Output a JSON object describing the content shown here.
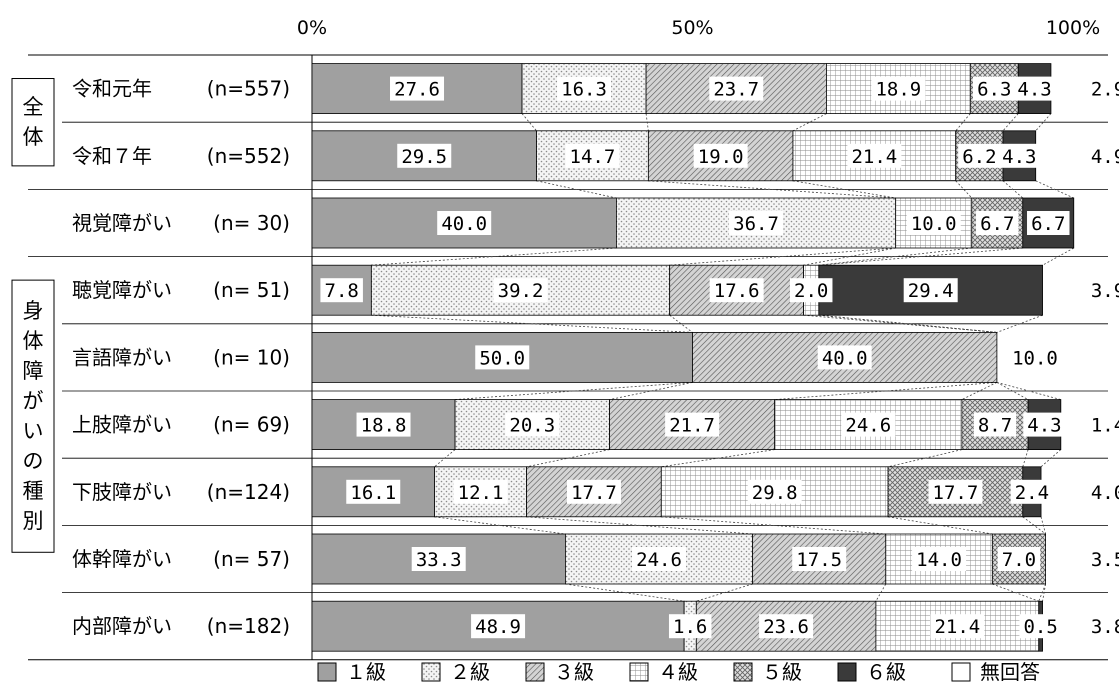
{
  "chart_data": {
    "type": "bar",
    "orientation": "horizontal-stacked-100",
    "x_ticks": [
      "0%",
      "50%",
      "100%"
    ],
    "xlim": [
      0,
      100
    ],
    "groups": [
      {
        "label": "全体",
        "rows": [
          0,
          1
        ]
      },
      {
        "label": "身体障がいの種別",
        "rows": [
          3,
          4,
          5,
          6,
          7,
          8
        ]
      }
    ],
    "categories": [
      {
        "name": "令和元年",
        "n": "(n=557)"
      },
      {
        "name": "令和７年",
        "n": "(n=552)"
      },
      {
        "name": "視覚障がい",
        "n": "(n= 30)"
      },
      {
        "name": "聴覚障がい",
        "n": "(n= 51)"
      },
      {
        "name": "言語障がい",
        "n": "(n= 10)"
      },
      {
        "name": "上肢障がい",
        "n": "(n= 69)"
      },
      {
        "name": "下肢障がい",
        "n": "(n=124)"
      },
      {
        "name": "体幹障がい",
        "n": "(n= 57)"
      },
      {
        "name": "内部障がい",
        "n": "(n=182)"
      }
    ],
    "series": [
      {
        "name": "１級",
        "values": [
          27.6,
          29.5,
          40.0,
          7.8,
          50.0,
          18.8,
          16.1,
          33.3,
          48.9
        ]
      },
      {
        "name": "２級",
        "values": [
          16.3,
          14.7,
          36.7,
          39.2,
          0,
          20.3,
          12.1,
          24.6,
          1.6
        ]
      },
      {
        "name": "３級",
        "values": [
          23.7,
          19.0,
          0,
          17.6,
          40.0,
          21.7,
          17.7,
          17.5,
          23.6
        ]
      },
      {
        "name": "４級",
        "values": [
          18.9,
          21.4,
          10.0,
          2.0,
          0,
          24.6,
          29.8,
          14.0,
          21.4
        ]
      },
      {
        "name": "５級",
        "values": [
          6.3,
          6.2,
          6.7,
          0,
          0,
          8.7,
          17.7,
          7.0,
          0
        ]
      },
      {
        "name": "６級",
        "values": [
          4.3,
          4.3,
          6.7,
          29.4,
          0,
          4.3,
          2.4,
          0,
          0.5
        ]
      },
      {
        "name": "無回答",
        "values": [
          2.9,
          4.9,
          0,
          3.9,
          10.0,
          1.4,
          4.0,
          3.5,
          3.8
        ]
      }
    ],
    "value_labels": [
      [
        "27.6",
        "16.3",
        "23.7",
        "18.9",
        "6.3",
        "4.3",
        "2.9"
      ],
      [
        "29.5",
        "14.7",
        "19.0",
        "21.4",
        "6.2",
        "4.3",
        "4.9"
      ],
      [
        "40.0",
        "36.7",
        "",
        "10.0",
        "6.7",
        "6.7",
        ""
      ],
      [
        "7.8",
        "39.2",
        "17.6",
        "2.0",
        "",
        "29.4",
        "3.9"
      ],
      [
        "50.0",
        "",
        "40.0",
        "",
        "",
        "",
        "10.0"
      ],
      [
        "18.8",
        "20.3",
        "21.7",
        "24.6",
        "8.7",
        "4.3",
        "1.4"
      ],
      [
        "16.1",
        "12.1",
        "17.7",
        "29.8",
        "17.7",
        "2.4",
        "4.0"
      ],
      [
        "33.3",
        "24.6",
        "17.5",
        "14.0",
        "7.0",
        "",
        "3.5"
      ],
      [
        "48.9",
        "1.6",
        "23.6",
        "21.4",
        "",
        "0.5",
        "3.8"
      ]
    ],
    "legend_position": "bottom",
    "grid": false,
    "colors": [
      "#a0a0a0",
      "#e6e6e6",
      "#b6b6b6",
      "#f2f2f2",
      "#c8c8c8",
      "#3a3a3a",
      "#ffffff"
    ]
  }
}
